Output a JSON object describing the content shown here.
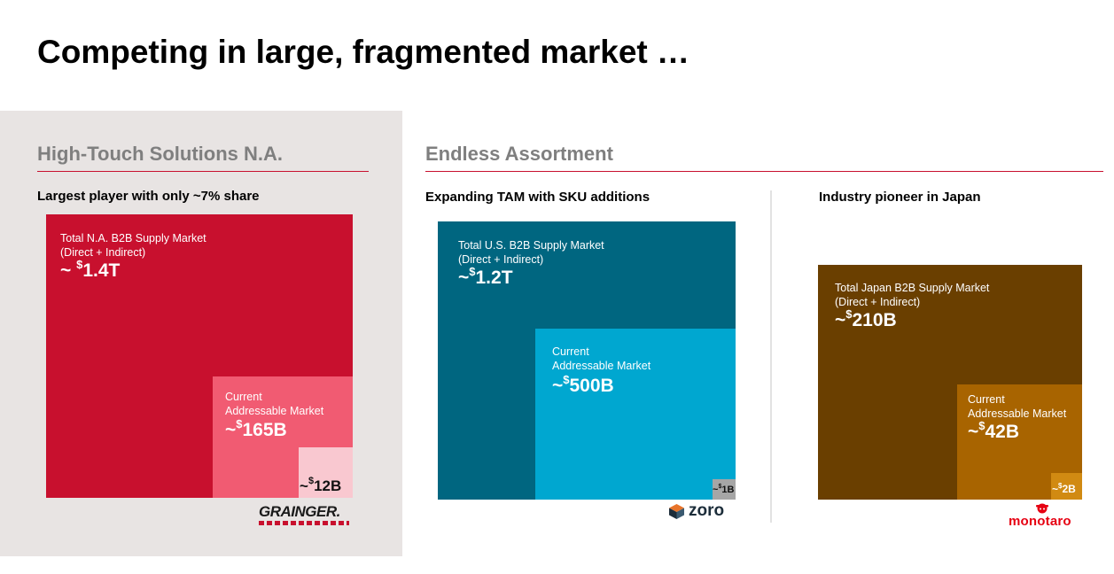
{
  "title": "Competing in large, fragmented market …",
  "left_section": {
    "heading": "High-Touch Solutions N.A.",
    "subheading": "Largest player with only ~7% share",
    "total": {
      "label_line1": "Total N.A. B2B Supply Market",
      "label_line2": "(Direct + Indirect)",
      "prefix": "~ ",
      "currency": "$",
      "amount": "1.4T"
    },
    "addressable": {
      "label_line1": "Current",
      "label_line2": "Addressable Market",
      "prefix": "~",
      "currency": "$",
      "amount": "165B"
    },
    "company": {
      "prefix": "~",
      "currency": "$",
      "amount": "12B"
    },
    "logo_text": "GRAINGER."
  },
  "right_section": {
    "heading": "Endless Assortment",
    "us": {
      "subheading": "Expanding TAM with SKU additions",
      "total": {
        "label_line1": "Total U.S. B2B Supply Market",
        "label_line2": "(Direct + Indirect)",
        "prefix": "~",
        "currency": "$",
        "amount": "1.2T"
      },
      "addressable": {
        "label_line1": "Current",
        "label_line2": "Addressable Market",
        "prefix": "~",
        "currency": "$",
        "amount": "500B"
      },
      "company": {
        "prefix": "~",
        "currency": "$",
        "amount": "1B"
      },
      "logo_text": "zoro"
    },
    "japan": {
      "subheading": "Industry pioneer in Japan",
      "total": {
        "label_line1": "Total Japan B2B Supply Market",
        "label_line2": "(Direct + Indirect)",
        "prefix": "~",
        "currency": "$",
        "amount": "210B"
      },
      "addressable": {
        "label_line1": "Current",
        "label_line2": "Addressable Market",
        "prefix": "~",
        "currency": "$",
        "amount": "42B"
      },
      "company": {
        "prefix": "~",
        "currency": "$",
        "amount": "2B"
      },
      "logo_text": "monotaro"
    }
  },
  "colors": {
    "accent_rule": "#c8102e",
    "na_total": "#c8102e",
    "na_addressable": "#f15b72",
    "na_company": "#f9c8d0",
    "us_total": "#006680",
    "us_addressable": "#00a7d0",
    "us_company": "#a6a6a6",
    "jp_total": "#6a3f00",
    "jp_addressable": "#a86400",
    "jp_company": "#d18a12"
  }
}
